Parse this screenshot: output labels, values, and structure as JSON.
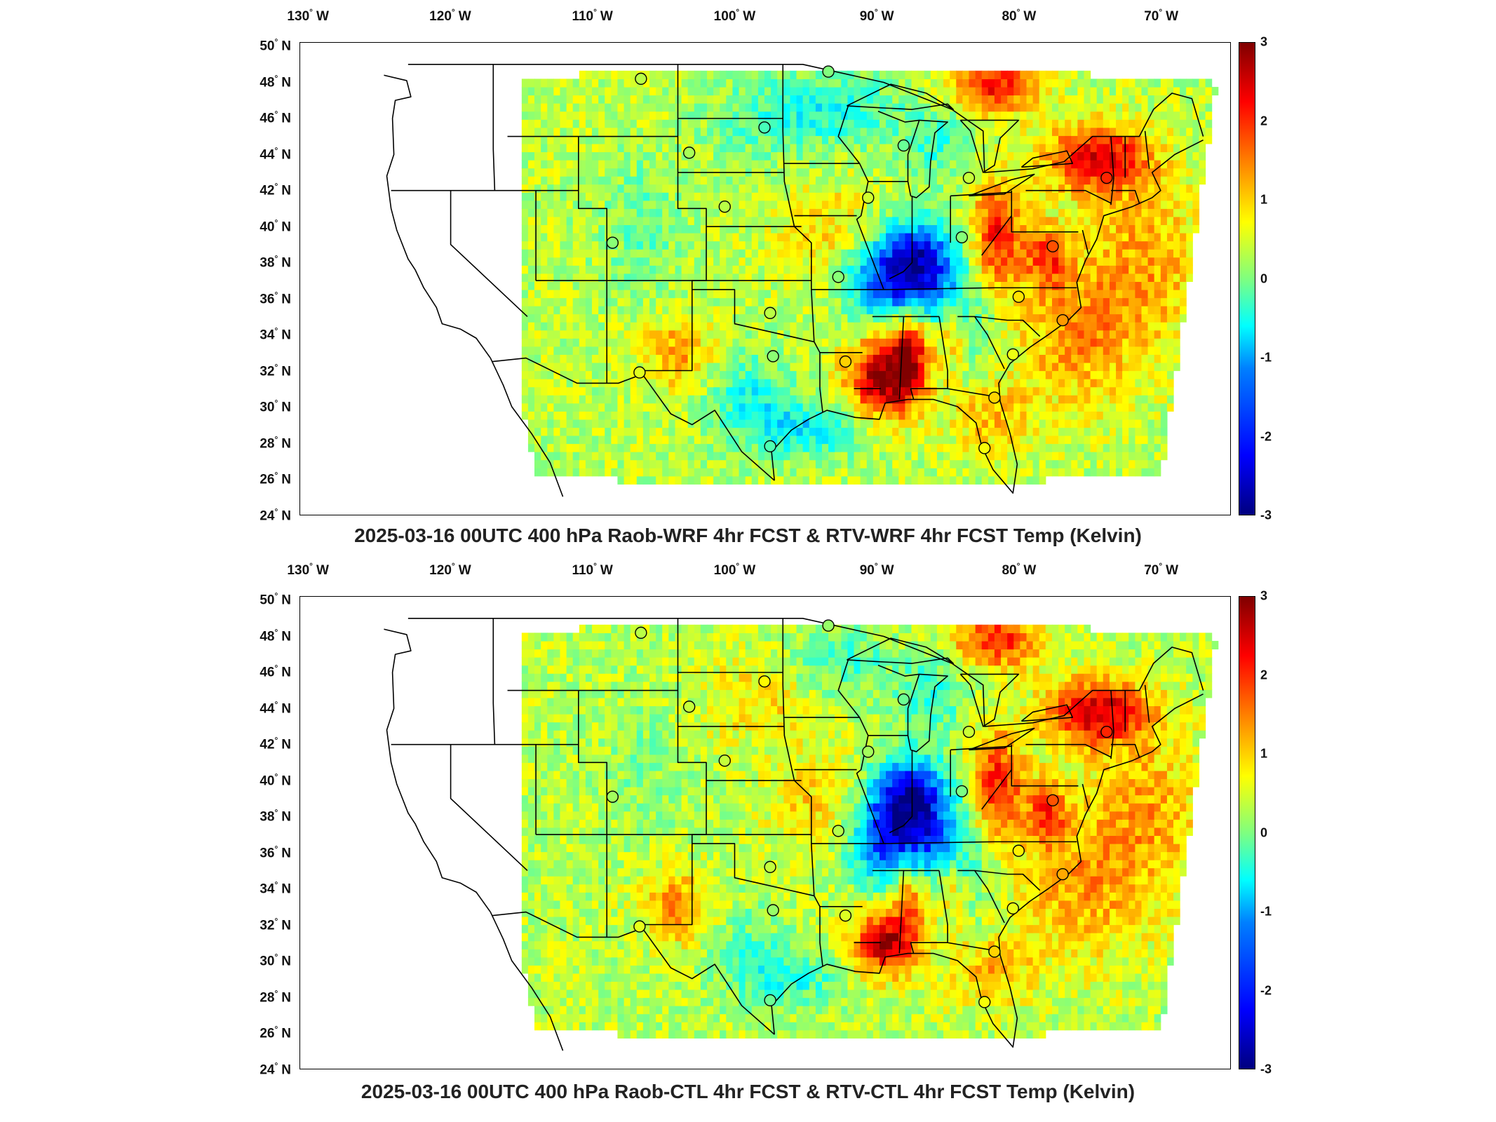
{
  "lon_labels": [
    {
      "deg": "130",
      "dir": "W"
    },
    {
      "deg": "120",
      "dir": "W"
    },
    {
      "deg": "110",
      "dir": "W"
    },
    {
      "deg": "100",
      "dir": "W"
    },
    {
      "deg": "90",
      "dir": "W"
    },
    {
      "deg": "80",
      "dir": "W"
    },
    {
      "deg": "70",
      "dir": "W"
    }
  ],
  "lat_labels": [
    {
      "deg": "50",
      "dir": "N"
    },
    {
      "deg": "48",
      "dir": "N"
    },
    {
      "deg": "46",
      "dir": "N"
    },
    {
      "deg": "44",
      "dir": "N"
    },
    {
      "deg": "42",
      "dir": "N"
    },
    {
      "deg": "40",
      "dir": "N"
    },
    {
      "deg": "38",
      "dir": "N"
    },
    {
      "deg": "36",
      "dir": "N"
    },
    {
      "deg": "34",
      "dir": "N"
    },
    {
      "deg": "32",
      "dir": "N"
    },
    {
      "deg": "30",
      "dir": "N"
    },
    {
      "deg": "28",
      "dir": "N"
    },
    {
      "deg": "26",
      "dir": "N"
    },
    {
      "deg": "24",
      "dir": "N"
    }
  ],
  "colorbar": {
    "ticks": [
      "3",
      "2",
      "1",
      "0",
      "-1",
      "-2",
      "-3"
    ],
    "range": [
      -3,
      3
    ],
    "colormap": "jet"
  },
  "panels": [
    {
      "title": "2025-03-16 00UTC 400 hPa Raob-WRF 4hr FCST & RTV-WRF 4hr FCST Temp (Kelvin)"
    },
    {
      "title": "2025-03-16 00UTC 400 hPa Raob-CTL 4hr FCST & RTV-CTL 4hr FCST Temp (Kelvin)"
    }
  ],
  "stations": [
    {
      "lon": -106.6,
      "lat": 48.2
    },
    {
      "lon": -93.4,
      "lat": 48.6
    },
    {
      "lon": -97.9,
      "lat": 45.5
    },
    {
      "lon": -103.2,
      "lat": 44.1
    },
    {
      "lon": -88.1,
      "lat": 44.5
    },
    {
      "lon": -83.5,
      "lat": 42.7
    },
    {
      "lon": -73.8,
      "lat": 42.7
    },
    {
      "lon": -100.7,
      "lat": 41.1
    },
    {
      "lon": -90.6,
      "lat": 41.6
    },
    {
      "lon": -84.0,
      "lat": 39.4
    },
    {
      "lon": -77.6,
      "lat": 38.9
    },
    {
      "lon": -108.6,
      "lat": 39.1
    },
    {
      "lon": -92.7,
      "lat": 37.2
    },
    {
      "lon": -80.0,
      "lat": 36.1
    },
    {
      "lon": -97.5,
      "lat": 35.2
    },
    {
      "lon": -76.9,
      "lat": 34.8
    },
    {
      "lon": -97.3,
      "lat": 32.8
    },
    {
      "lon": -92.2,
      "lat": 32.5
    },
    {
      "lon": -80.4,
      "lat": 32.9
    },
    {
      "lon": -106.7,
      "lat": 31.9
    },
    {
      "lon": -81.7,
      "lat": 30.5
    },
    {
      "lon": -97.5,
      "lat": 27.8
    },
    {
      "lon": -82.4,
      "lat": 27.7
    }
  ]
}
